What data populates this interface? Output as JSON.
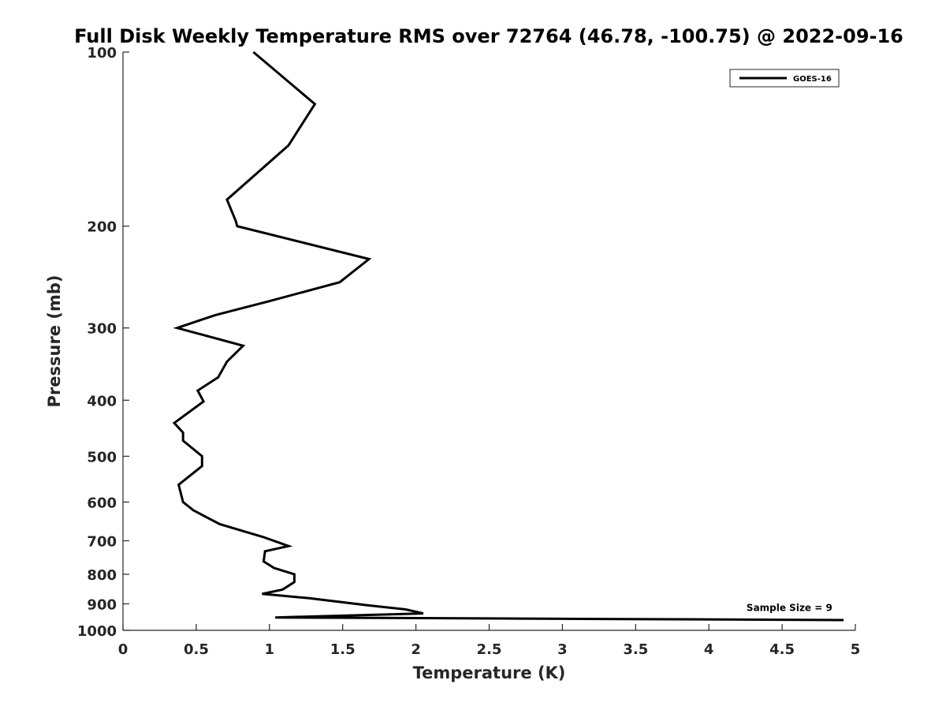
{
  "chart_data": {
    "type": "line",
    "title": "Full Disk Weekly Temperature RMS over 72764 (46.78, -100.75) @ 2022-09-16",
    "xlabel": "Temperature (K)",
    "ylabel": "Pressure (mb)",
    "xlim": [
      0,
      5
    ],
    "ylim": [
      100,
      1000
    ],
    "y_scale": "log",
    "y_reversed": true,
    "xticks": [
      0,
      0.5,
      1,
      1.5,
      2,
      2.5,
      3,
      3.5,
      4,
      4.5,
      5
    ],
    "xtick_labels": [
      "0",
      "0.5",
      "1",
      "1.5",
      "2",
      "2.5",
      "3",
      "3.5",
      "4",
      "4.5",
      "5"
    ],
    "yticks": [
      100,
      200,
      300,
      400,
      500,
      600,
      700,
      800,
      900,
      1000
    ],
    "ytick_labels": [
      "100",
      "200",
      "300",
      "400",
      "500",
      "600",
      "700",
      "800",
      "900",
      "1000"
    ],
    "grid": false,
    "legend_position": "top-right",
    "series": [
      {
        "name": "GOES-16",
        "color": "#000000",
        "x": [
          0.89,
          1.31,
          1.13,
          0.71,
          0.77,
          0.78,
          1.68,
          1.48,
          0.99,
          0.63,
          0.37,
          0.82,
          0.71,
          0.65,
          0.51,
          0.55,
          0.35,
          0.41,
          0.41,
          0.54,
          0.54,
          0.38,
          0.41,
          0.48,
          0.66,
          0.96,
          1.13,
          0.97,
          0.96,
          1.03,
          1.17,
          1.17,
          1.09,
          0.95,
          1.27,
          1.67,
          1.93,
          2.05,
          1.04,
          4.92
        ],
        "y": [
          100,
          123,
          145,
          180,
          196,
          200,
          228,
          250,
          270,
          285,
          300,
          322,
          343,
          365,
          385,
          402,
          438,
          455,
          470,
          500,
          520,
          560,
          600,
          620,
          655,
          690,
          715,
          730,
          760,
          780,
          800,
          825,
          850,
          865,
          880,
          905,
          920,
          935,
          950,
          960
        ]
      }
    ],
    "annotations": [
      {
        "text": "Sample Size = 9",
        "x": 4.55,
        "y": 915
      }
    ]
  }
}
